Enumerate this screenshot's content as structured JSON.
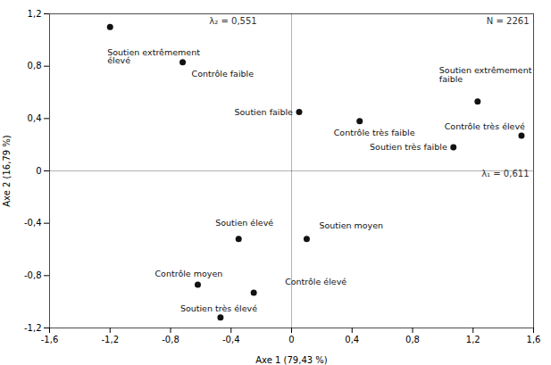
{
  "chart_data": {
    "type": "scatter",
    "x": [
      -1.2,
      -0.72,
      0.05,
      0.45,
      1.23,
      1.07,
      1.52,
      -0.35,
      0.1,
      -0.62,
      -0.25,
      -0.47
    ],
    "values": [
      1.1,
      0.83,
      0.45,
      0.38,
      0.53,
      0.18,
      0.27,
      -0.52,
      -0.52,
      -0.87,
      -0.93,
      -1.12
    ],
    "labels": [
      "Soutien extrêmement\nélevé",
      "Contrôle faible",
      "Soutien faible",
      "Contrôle très faible",
      "Soutien extrêmement\nfaible",
      "Soutien très faible",
      "Contrôle très élevé",
      "Soutien élevé",
      "Soutien moyen",
      "Contrôle moyen",
      "Contrôle élevé",
      "Soutien très élevé"
    ],
    "color": "#111111",
    "xlabel": "Axe 1 (79,43 %)",
    "ylabel": "Axe 2 (16,79 %)",
    "xlim": [
      -1.6,
      1.6
    ],
    "ylim": [
      -1.2,
      1.2
    ],
    "xticks": [
      {
        "value": -1.6,
        "label": "-1,6"
      },
      {
        "value": -1.2,
        "label": "-1,2"
      },
      {
        "value": -0.8,
        "label": "-0,8"
      },
      {
        "value": -0.4,
        "label": "-0,4"
      },
      0,
      {
        "value": 0.4,
        "label": "0,4"
      },
      {
        "value": 0.8,
        "label": "0,8"
      },
      {
        "value": 1.2,
        "label": "1,2"
      },
      {
        "value": 1.6,
        "label": "1,6"
      }
    ],
    "yticks": [
      {
        "value": -1.2,
        "label": "-1,2"
      },
      {
        "value": -0.8,
        "label": "-0,8"
      },
      {
        "value": -0.4,
        "label": "-0,4"
      },
      0,
      {
        "value": 0.4,
        "label": "0,4"
      },
      {
        "value": 0.8,
        "label": "0,8"
      },
      {
        "value": 1.2,
        "label": "1,2"
      }
    ],
    "annotations": [
      "λ₂ = 0,551",
      "N = 2261",
      "λ₁ = 0,611"
    ],
    "grid": false
  }
}
